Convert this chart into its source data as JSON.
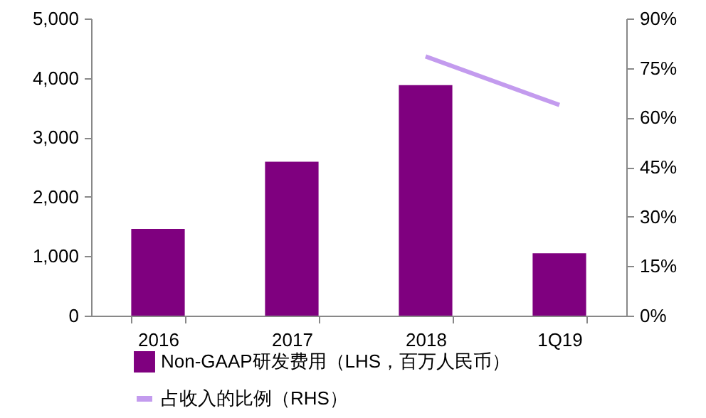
{
  "chart_data": {
    "type": "bar",
    "categories": [
      "2016",
      "2017",
      "2018",
      "1Q19"
    ],
    "series": [
      {
        "name": "Non-GAAP研发费用（LHS，百万人民币）",
        "color": "#7f007f",
        "values": [
          1460,
          2590,
          3880,
          1050
        ]
      },
      {
        "name": "占收入的比例（RHS）",
        "type": "line",
        "axis": "y2",
        "color": "#c39bee",
        "values": [
          null,
          null,
          78.5,
          63.8
        ]
      }
    ],
    "ylim": [
      0,
      5000
    ],
    "yticks": [
      0,
      {
        "value": 1000,
        "label": "1,000"
      },
      {
        "value": 2000,
        "label": "2,000"
      },
      {
        "value": 3000,
        "label": "3,000"
      },
      {
        "value": 4000,
        "label": "4,000"
      },
      {
        "value": 5000,
        "label": "5,000"
      }
    ],
    "y2lim": [
      0,
      90
    ],
    "y2ticks": [
      {
        "value": 0,
        "label": "0%"
      },
      {
        "value": 15,
        "label": "15%"
      },
      {
        "value": 30,
        "label": "30%"
      },
      {
        "value": 45,
        "label": "45%"
      },
      {
        "value": 60,
        "label": "60%"
      },
      {
        "value": 75,
        "label": "75%"
      },
      {
        "value": 90,
        "label": "90%"
      }
    ],
    "legend": "bottom",
    "grid": false
  }
}
